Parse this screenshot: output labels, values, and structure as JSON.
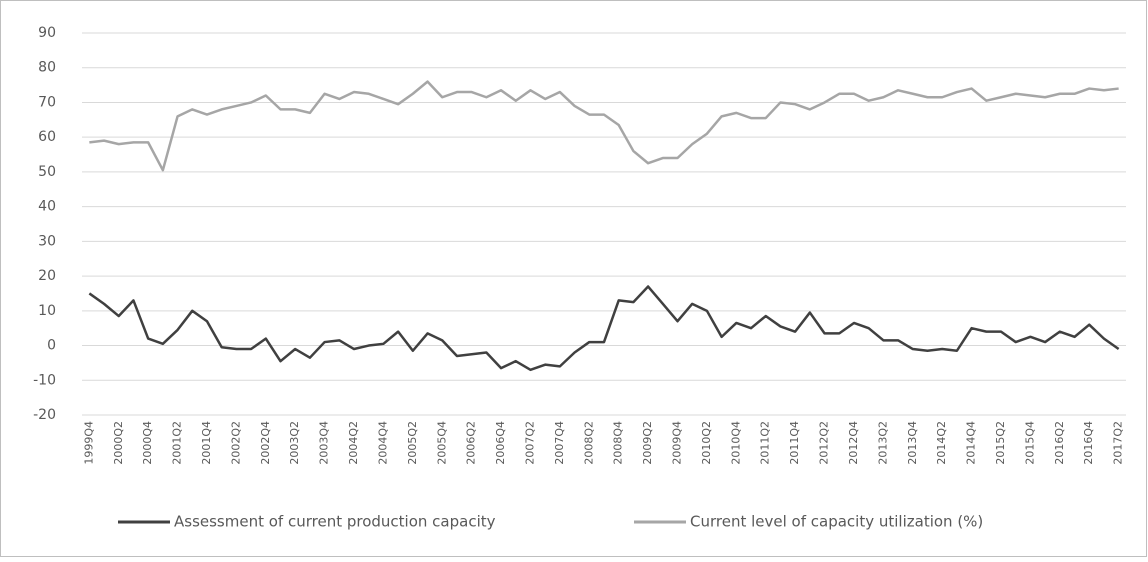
{
  "chart_data": {
    "type": "line",
    "categories": [
      "1999Q4",
      null,
      "2000Q2",
      null,
      "2000Q4",
      null,
      "2001Q2",
      null,
      "2001Q4",
      null,
      "2002Q2",
      null,
      "2002Q4",
      null,
      "2003Q2",
      null,
      "2003Q4",
      null,
      "2004Q2",
      null,
      "2004Q4",
      null,
      "2005Q2",
      null,
      "2005Q4",
      null,
      "2006Q2",
      null,
      "2006Q4",
      null,
      "2007Q2",
      null,
      "2007Q4",
      null,
      "2008Q2",
      null,
      "2008Q4",
      null,
      "2009Q2",
      null,
      "2009Q4",
      null,
      "2010Q2",
      null,
      "2010Q4",
      null,
      "2011Q2",
      null,
      "2011Q4",
      null,
      "2012Q2",
      null,
      "2012Q4",
      null,
      "2013Q2",
      null,
      "2013Q4",
      null,
      "2014Q2",
      null,
      "2014Q4",
      null,
      "2015Q2",
      null,
      "2015Q4",
      null,
      "2016Q2",
      null,
      "2016Q4",
      null,
      "2017Q2"
    ],
    "series": [
      {
        "name": "Assessment of current production capacity",
        "color": "#404040",
        "values": [
          15,
          12,
          8.5,
          13,
          2,
          0.5,
          4.5,
          10,
          7,
          -0.5,
          -1,
          -1,
          2,
          -4.5,
          -1,
          -3.5,
          1,
          1.5,
          -1,
          0,
          0.5,
          4,
          -1.5,
          3.5,
          1.5,
          -3,
          -2.5,
          -2,
          -6.5,
          -4.5,
          -7,
          -5.5,
          -6,
          -2,
          1,
          1,
          13,
          12.5,
          17,
          12,
          7,
          12,
          10,
          2.5,
          6.5,
          5,
          8.5,
          5.5,
          4,
          9.5,
          3.5,
          3.5,
          6.5,
          5,
          1.5,
          1.5,
          -1,
          -1.5,
          -1,
          -1.5,
          5,
          4,
          4,
          1,
          2.5,
          1,
          4,
          2.5,
          6,
          2,
          -1
        ]
      },
      {
        "name": "Current level of capacity utilization (%)",
        "color": "#a6a6a6",
        "values": [
          58.5,
          59,
          58,
          58.5,
          58.5,
          50.5,
          66,
          68,
          66.5,
          68,
          69,
          70,
          72,
          68,
          68,
          67,
          72.5,
          71,
          73,
          72.5,
          71,
          69.5,
          72.5,
          76,
          71.5,
          73,
          73,
          71.5,
          73.5,
          70.5,
          73.5,
          71,
          73,
          69,
          66.5,
          66.5,
          63.5,
          56,
          52.5,
          54,
          54,
          58,
          61,
          66,
          67,
          65.5,
          65.5,
          70,
          69.5,
          68,
          70,
          72.5,
          72.5,
          70.5,
          71.5,
          73.5,
          72.5,
          71.5,
          71.5,
          73,
          74,
          70.5,
          71.5,
          72.5,
          72,
          71.5,
          72.5,
          72.5,
          74,
          73.5,
          74
        ]
      }
    ],
    "ylim": [
      -20,
      90
    ],
    "yticks": [
      -20,
      -10,
      0,
      10,
      20,
      30,
      40,
      50,
      60,
      70,
      80,
      90
    ],
    "grid": true,
    "legend": "bottom"
  }
}
